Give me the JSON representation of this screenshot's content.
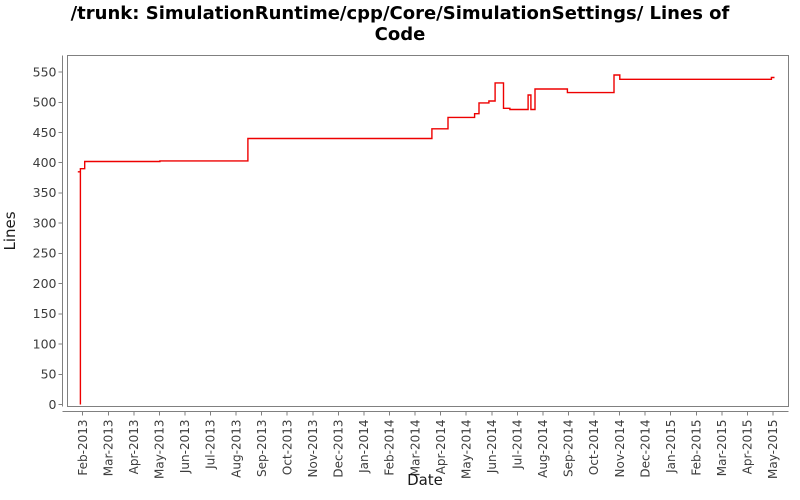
{
  "header": {
    "title": "/trunk: SimulationRuntime/cpp/Core/SimulationSettings/ Lines of Code",
    "title_line1": "/trunk: SimulationRuntime/cpp/Core/SimulationSettings/ Lines of",
    "title_line2": "Code"
  },
  "chart_data": {
    "type": "line",
    "interpolation": "step-after",
    "title": "/trunk: SimulationRuntime/cpp/Core/SimulationSettings/ Lines of Code",
    "xlabel": "Date",
    "ylabel": "Lines",
    "grid": false,
    "legend": "none",
    "ylim": [
      0,
      575
    ],
    "y_ticks": [
      0,
      50,
      100,
      150,
      200,
      250,
      300,
      350,
      400,
      450,
      500,
      550
    ],
    "x_tick_labels": [
      "Feb-2013",
      "Mar-2013",
      "Apr-2013",
      "May-2013",
      "Jun-2013",
      "Jul-2013",
      "Aug-2013",
      "Sep-2013",
      "Oct-2013",
      "Nov-2013",
      "Dec-2013",
      "Jan-2014",
      "Feb-2014",
      "Mar-2014",
      "Apr-2014",
      "May-2014",
      "Jun-2014",
      "Jul-2014",
      "Aug-2014",
      "Sep-2014",
      "Oct-2014",
      "Nov-2014",
      "Dec-2014",
      "Jan-2015",
      "Feb-2015",
      "Mar-2015",
      "Apr-2015",
      "May-2015"
    ],
    "series": [
      {
        "name": "Lines of Code",
        "color": "#ee0000",
        "note": "points are [months-after-Feb-2013-tick, lines-of-code], step-after interpolation",
        "points_month_value": [
          [
            -0.19,
            385
          ],
          [
            -0.09,
            0
          ],
          [
            -0.09,
            390
          ],
          [
            0.08,
            402
          ],
          [
            3.02,
            403
          ],
          [
            6.46,
            440
          ],
          [
            13.66,
            456
          ],
          [
            14.29,
            475
          ],
          [
            15.33,
            481
          ],
          [
            15.5,
            499
          ],
          [
            15.89,
            502
          ],
          [
            16.13,
            532
          ],
          [
            16.46,
            490
          ],
          [
            16.71,
            488
          ],
          [
            17.42,
            512
          ],
          [
            17.53,
            488
          ],
          [
            17.69,
            522
          ],
          [
            18.96,
            516
          ],
          [
            20.78,
            545
          ],
          [
            21.01,
            538
          ],
          [
            26.94,
            541
          ],
          [
            27.06,
            541
          ]
        ]
      }
    ],
    "colors": {
      "background": "#ffffff",
      "axis": "#808080",
      "tick_label": "#3d3d3d",
      "axis_label": "#1a1a1a",
      "title": "#000000"
    }
  }
}
